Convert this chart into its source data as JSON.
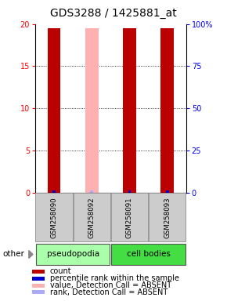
{
  "title": "GDS3288 / 1425881_at",
  "samples": [
    "GSM258090",
    "GSM258092",
    "GSM258091",
    "GSM258093"
  ],
  "ylim_left": [
    0,
    20
  ],
  "ylim_right": [
    0,
    100
  ],
  "yticks_left": [
    0,
    5,
    10,
    15,
    20
  ],
  "yticks_right": [
    0,
    25,
    50,
    75,
    100
  ],
  "count_values": [
    19.5,
    19.5,
    19.5,
    19.5
  ],
  "count_absent": [
    false,
    true,
    false,
    false
  ],
  "rank_values": [
    0.3,
    0.3,
    0.3,
    0.3
  ],
  "rank_absent": [
    false,
    true,
    false,
    false
  ],
  "count_color": "#bb0000",
  "count_absent_color": "#ffb0b0",
  "rank_color": "#0000cc",
  "rank_absent_color": "#aaaaff",
  "group_colors": [
    "#aaffaa",
    "#44dd44"
  ],
  "sample_box_color": "#cccccc",
  "title_fontsize": 10,
  "tick_fontsize": 7,
  "legend_fontsize": 7,
  "other_label": "other"
}
